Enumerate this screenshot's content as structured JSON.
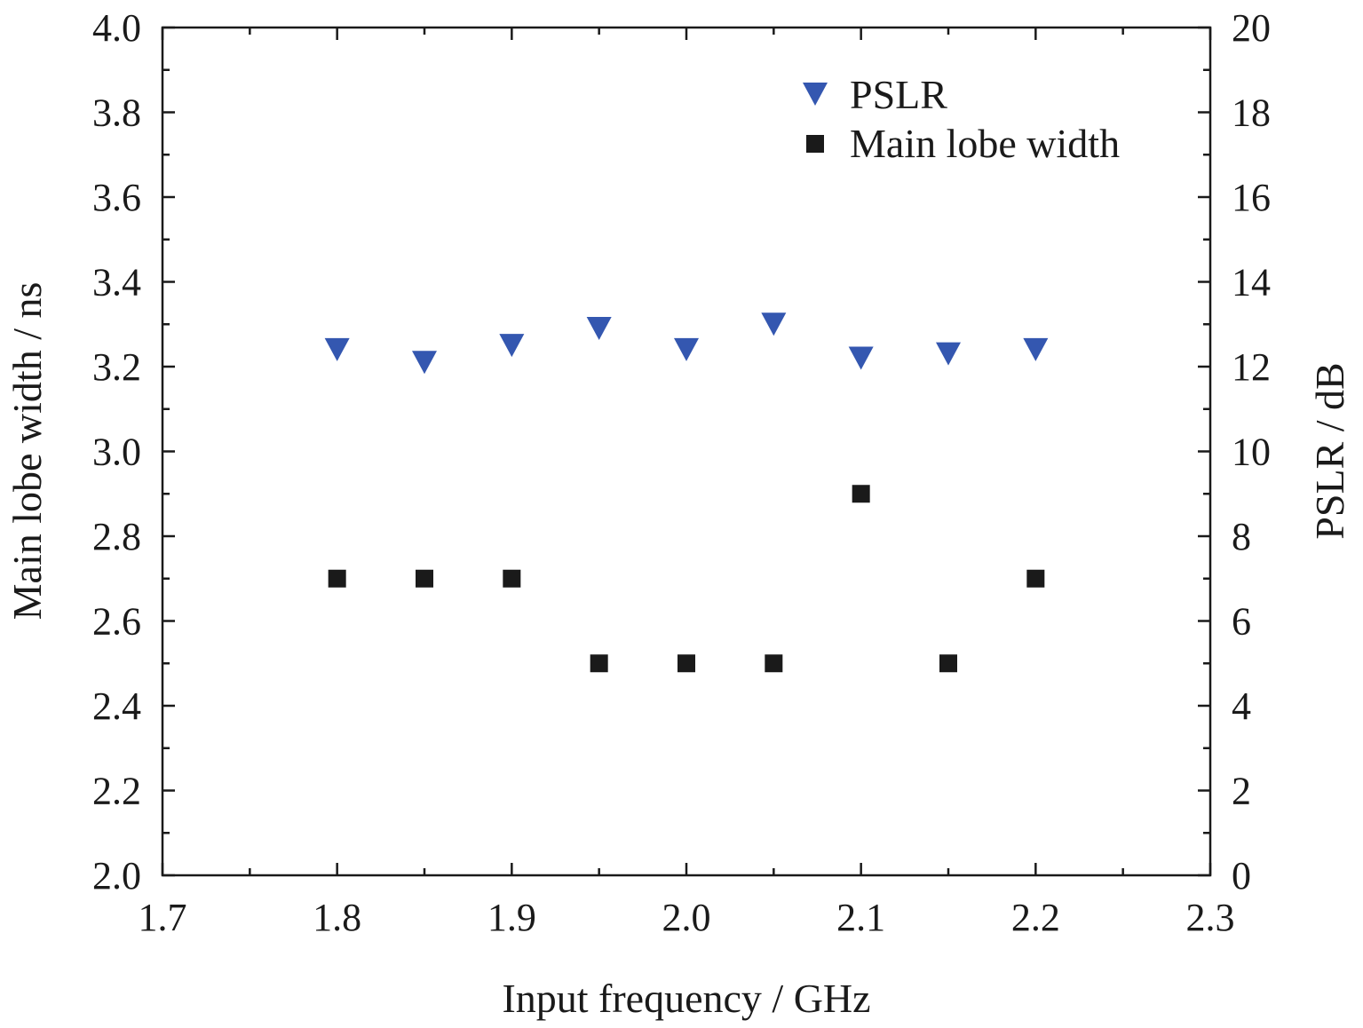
{
  "chart_data": {
    "type": "scatter",
    "xlabel": "Input frequency / GHz",
    "ylabel_left": "Main lobe width / ns",
    "ylabel_right": "PSLR / dB",
    "xlim": [
      1.7,
      2.3
    ],
    "ylim_left": [
      2.0,
      4.0
    ],
    "ylim_right": [
      0,
      20
    ],
    "x_ticks": [
      "1.7",
      "1.8",
      "1.9",
      "2.0",
      "2.1",
      "2.2",
      "2.3"
    ],
    "y_left_ticks": [
      "2.0",
      "2.2",
      "2.4",
      "2.6",
      "2.8",
      "3.0",
      "3.2",
      "3.4",
      "3.6",
      "3.8",
      "4.0"
    ],
    "y_right_ticks": [
      "0",
      "2",
      "4",
      "6",
      "8",
      "10",
      "12",
      "14",
      "16",
      "18",
      "20"
    ],
    "grid": false,
    "legend_position": "top-right",
    "series": [
      {
        "name": "PSLR",
        "axis": "right",
        "marker": "triangle-down",
        "color": "#3457b0",
        "x": [
          1.8,
          1.85,
          1.9,
          1.95,
          2.0,
          2.05,
          2.1,
          2.15,
          2.2
        ],
        "y": [
          12.4,
          12.1,
          12.5,
          12.9,
          12.4,
          13.0,
          12.2,
          12.3,
          12.4
        ]
      },
      {
        "name": "Main lobe width",
        "axis": "left",
        "marker": "square",
        "color": "#1a1a1a",
        "x": [
          1.8,
          1.85,
          1.9,
          1.95,
          2.0,
          2.05,
          2.1,
          2.15,
          2.2
        ],
        "y": [
          2.7,
          2.7,
          2.7,
          2.5,
          2.5,
          2.5,
          2.9,
          2.5,
          2.7
        ]
      }
    ]
  }
}
